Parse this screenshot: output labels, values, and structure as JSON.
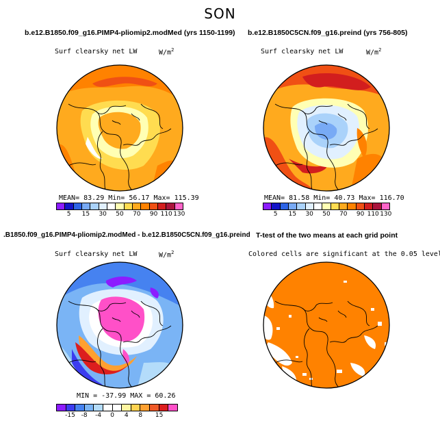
{
  "suptitle": "SON",
  "panels": [
    {
      "title": "b.e12.B1850.f09_g16.PIMP4-pliomip2.modMed (yrs 1150-1199)",
      "left_label": "Surf clearsky net LW",
      "right_label": "W/m",
      "right_sup": "2",
      "stats": "MEAN=  83.29  Min=  56.17  Max= 115.39"
    },
    {
      "title": "b.e12.B1850C5CN.f09_g16.preind (yrs 756-805)",
      "left_label": "Surf clearsky net LW",
      "right_label": "W/m",
      "right_sup": "2",
      "stats": "MEAN=  81.58  Min=  40.73  Max= 116.70"
    },
    {
      "title": ".B1850.f09_g16.PIMP4-pliomip2.modMed - b.e12.B1850C5CN.f09_g16.preind",
      "left_label": "Surf clearsky net LW",
      "right_label": "W/m",
      "right_sup": "2",
      "stats": "MIN = -37.99  MAX =  60.26"
    },
    {
      "title": "T-test of the two means at each grid point",
      "left_label": "Colored cells are significant at the 0.05 level"
    }
  ],
  "colorbar_abs": {
    "colors": [
      "#8c1cff",
      "#1414c8",
      "#2d64e6",
      "#78aaf5",
      "#aad2fa",
      "#e1f0ff",
      "#ffffff",
      "#ffffb4",
      "#ffdc50",
      "#ffaa1e",
      "#ff8200",
      "#f05014",
      "#d21e1e",
      "#aa143c",
      "#ff64c8"
    ],
    "tick_labels": [
      "5",
      "15",
      "30",
      "50",
      "70",
      "90",
      "110",
      "130"
    ]
  },
  "colorbar_diff": {
    "colors": [
      "#8c1cff",
      "#3c3cf0",
      "#4682f0",
      "#7ab4f5",
      "#b4dcfa",
      "#ffffff",
      "#ffffff",
      "#fff5a0",
      "#ffd250",
      "#ffa030",
      "#f05a28",
      "#dc1e1e",
      "#ff50c8"
    ],
    "tick_labels": [
      "-15",
      "-8",
      "-4",
      "0",
      "4",
      "8",
      "15"
    ]
  }
}
